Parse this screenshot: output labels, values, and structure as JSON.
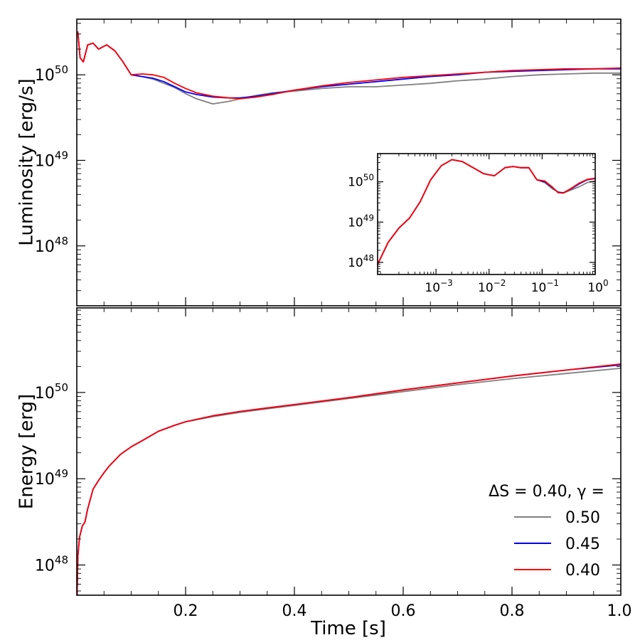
{
  "chart_data": [
    {
      "id": "luminosity",
      "type": "line",
      "ylabel": "Luminosity [erg/s]",
      "xlabel": "",
      "xlim": [
        0,
        1.0
      ],
      "ylim_log10": [
        47.3,
        50.65
      ],
      "yscale": "log",
      "yticks": [
        {
          "log": 48,
          "base": "10",
          "exp": "48"
        },
        {
          "log": 49,
          "base": "10",
          "exp": "49"
        },
        {
          "log": 50,
          "base": "10",
          "exp": "50"
        }
      ],
      "series": [
        {
          "name": "0.50",
          "color": "#808080",
          "x": [
            0.002,
            0.006,
            0.012,
            0.02,
            0.03,
            0.04,
            0.055,
            0.07,
            0.085,
            0.1,
            0.12,
            0.14,
            0.16,
            0.18,
            0.2,
            0.22,
            0.25,
            0.28,
            0.3,
            0.33,
            0.36,
            0.4,
            0.45,
            0.5,
            0.55,
            0.6,
            0.65,
            0.7,
            0.75,
            0.8,
            0.85,
            0.9,
            0.95,
            1.0
          ],
          "y": [
            50.5,
            50.2,
            50.15,
            50.35,
            50.37,
            50.3,
            50.35,
            50.28,
            50.15,
            50.0,
            49.98,
            49.95,
            49.9,
            49.85,
            49.78,
            49.72,
            49.66,
            49.69,
            49.72,
            49.76,
            49.79,
            49.81,
            49.84,
            49.86,
            49.86,
            49.88,
            49.9,
            49.93,
            49.95,
            49.98,
            50.0,
            50.01,
            50.02,
            50.02
          ]
        },
        {
          "name": "0.45",
          "color": "#0000ff",
          "x": [
            0.002,
            0.006,
            0.012,
            0.02,
            0.03,
            0.04,
            0.055,
            0.07,
            0.085,
            0.1,
            0.12,
            0.14,
            0.16,
            0.18,
            0.2,
            0.22,
            0.25,
            0.28,
            0.3,
            0.33,
            0.36,
            0.4,
            0.45,
            0.5,
            0.55,
            0.6,
            0.65,
            0.7,
            0.75,
            0.8,
            0.85,
            0.9,
            0.95,
            1.0
          ],
          "y": [
            50.5,
            50.2,
            50.15,
            50.35,
            50.37,
            50.3,
            50.35,
            50.28,
            50.15,
            50.0,
            49.98,
            49.96,
            49.92,
            49.86,
            49.8,
            49.77,
            49.74,
            49.73,
            49.73,
            49.75,
            49.78,
            49.82,
            49.86,
            49.89,
            49.92,
            49.95,
            49.98,
            50.0,
            50.03,
            50.04,
            50.05,
            50.06,
            50.07,
            50.07
          ]
        },
        {
          "name": "0.40",
          "color": "#ff0000",
          "x": [
            0.002,
            0.006,
            0.012,
            0.02,
            0.03,
            0.04,
            0.055,
            0.07,
            0.085,
            0.1,
            0.12,
            0.14,
            0.16,
            0.18,
            0.2,
            0.22,
            0.25,
            0.28,
            0.3,
            0.33,
            0.36,
            0.4,
            0.45,
            0.5,
            0.55,
            0.6,
            0.65,
            0.7,
            0.75,
            0.8,
            0.85,
            0.9,
            0.95,
            1.0
          ],
          "y": [
            50.5,
            50.2,
            50.15,
            50.35,
            50.37,
            50.3,
            50.35,
            50.28,
            50.15,
            50.0,
            50.01,
            50.0,
            49.97,
            49.9,
            49.84,
            49.79,
            49.75,
            49.73,
            49.72,
            49.74,
            49.77,
            49.82,
            49.87,
            49.91,
            49.94,
            49.97,
            49.99,
            50.01,
            50.03,
            50.05,
            50.06,
            50.07,
            50.07,
            50.08
          ]
        }
      ],
      "inset": {
        "xscale": "log",
        "yscale": "log",
        "xlim_log10": [
          -4.1,
          0.0
        ],
        "ylim_log10": [
          47.7,
          50.7
        ],
        "xticks": [
          {
            "log": -3,
            "base": "10",
            "exp": "−3"
          },
          {
            "log": -2,
            "base": "10",
            "exp": "−2"
          },
          {
            "log": -1,
            "base": "10",
            "exp": "−1"
          },
          {
            "log": 0,
            "base": "10",
            "exp": "0"
          }
        ],
        "yticks": [
          {
            "log": 48,
            "base": "10",
            "exp": "48"
          },
          {
            "log": 49,
            "base": "10",
            "exp": "49"
          },
          {
            "log": 50,
            "base": "10",
            "exp": "50"
          }
        ],
        "series": [
          {
            "name": "0.50",
            "color": "#808080",
            "x": [
              -4.1,
              -3.9,
              -3.7,
              -3.5,
              -3.3,
              -3.1,
              -2.9,
              -2.7,
              -2.5,
              -2.3,
              -2.1,
              -1.9,
              -1.7,
              -1.55,
              -1.4,
              -1.25,
              -1.1,
              -0.95,
              -0.8,
              -0.7,
              -0.6,
              -0.45,
              -0.3,
              -0.15,
              0.0
            ],
            "y": [
              47.95,
              48.5,
              48.85,
              49.1,
              49.5,
              50.05,
              50.4,
              50.55,
              50.5,
              50.35,
              50.2,
              50.15,
              50.35,
              50.38,
              50.35,
              50.35,
              50.05,
              49.98,
              49.82,
              49.75,
              49.72,
              49.8,
              49.88,
              49.98,
              50.02
            ]
          },
          {
            "name": "0.45",
            "color": "#0000ff",
            "x": [
              -4.1,
              -3.9,
              -3.7,
              -3.5,
              -3.3,
              -3.1,
              -2.9,
              -2.7,
              -2.5,
              -2.3,
              -2.1,
              -1.9,
              -1.7,
              -1.55,
              -1.4,
              -1.25,
              -1.1,
              -0.95,
              -0.8,
              -0.7,
              -0.6,
              -0.45,
              -0.3,
              -0.15,
              0.0
            ],
            "y": [
              47.95,
              48.5,
              48.85,
              49.1,
              49.5,
              50.05,
              50.4,
              50.55,
              50.5,
              50.35,
              50.2,
              50.15,
              50.35,
              50.38,
              50.35,
              50.35,
              50.05,
              50.0,
              49.85,
              49.74,
              49.73,
              49.83,
              49.95,
              50.05,
              50.08
            ]
          },
          {
            "name": "0.40",
            "color": "#ff0000",
            "x": [
              -4.1,
              -3.9,
              -3.7,
              -3.5,
              -3.3,
              -3.1,
              -2.9,
              -2.7,
              -2.5,
              -2.3,
              -2.1,
              -1.9,
              -1.7,
              -1.55,
              -1.4,
              -1.25,
              -1.1,
              -0.95,
              -0.8,
              -0.7,
              -0.6,
              -0.45,
              -0.3,
              -0.15,
              0.0
            ],
            "y": [
              47.95,
              48.5,
              48.85,
              49.1,
              49.5,
              50.05,
              50.4,
              50.55,
              50.5,
              50.35,
              50.2,
              50.15,
              50.35,
              50.38,
              50.35,
              50.35,
              50.05,
              50.02,
              49.86,
              49.73,
              49.72,
              49.84,
              49.97,
              50.06,
              50.09
            ]
          }
        ]
      }
    },
    {
      "id": "energy",
      "type": "line",
      "ylabel": "Energy [erg]",
      "xlabel": "Time [s]",
      "xlim": [
        0,
        1.0
      ],
      "ylim_log10": [
        47.65,
        50.98
      ],
      "yscale": "log",
      "xticks": [
        {
          "val": 0.2,
          "label": "0.2"
        },
        {
          "val": 0.4,
          "label": "0.4"
        },
        {
          "val": 0.6,
          "label": "0.6"
        },
        {
          "val": 0.8,
          "label": "0.8"
        },
        {
          "val": 1.0,
          "label": "1.0"
        }
      ],
      "yticks": [
        {
          "log": 48,
          "base": "10",
          "exp": "48"
        },
        {
          "log": 49,
          "base": "10",
          "exp": "49"
        },
        {
          "log": 50,
          "base": "10",
          "exp": "50"
        }
      ],
      "series": [
        {
          "name": "0.50",
          "color": "#808080",
          "x": [
            0.0005,
            0.002,
            0.005,
            0.01,
            0.015,
            0.02,
            0.03,
            0.04,
            0.05,
            0.06,
            0.08,
            0.1,
            0.12,
            0.15,
            0.18,
            0.2,
            0.25,
            0.3,
            0.35,
            0.4,
            0.5,
            0.6,
            0.7,
            0.8,
            0.9,
            1.0
          ],
          "y": [
            47.65,
            48.1,
            48.32,
            48.45,
            48.5,
            48.65,
            48.88,
            48.98,
            49.07,
            49.15,
            49.28,
            49.37,
            49.44,
            49.55,
            49.62,
            49.66,
            49.72,
            49.77,
            49.81,
            49.85,
            49.93,
            50.01,
            50.09,
            50.16,
            50.22,
            50.28
          ]
        },
        {
          "name": "0.45",
          "color": "#0000ff",
          "x": [
            0.0005,
            0.002,
            0.005,
            0.01,
            0.015,
            0.02,
            0.03,
            0.04,
            0.05,
            0.06,
            0.08,
            0.1,
            0.12,
            0.15,
            0.18,
            0.2,
            0.25,
            0.3,
            0.35,
            0.4,
            0.5,
            0.6,
            0.7,
            0.8,
            0.9,
            1.0
          ],
          "y": [
            47.65,
            48.1,
            48.32,
            48.45,
            48.5,
            48.65,
            48.88,
            48.98,
            49.07,
            49.15,
            49.28,
            49.37,
            49.44,
            49.55,
            49.62,
            49.66,
            49.73,
            49.78,
            49.82,
            49.86,
            49.94,
            50.03,
            50.11,
            50.19,
            50.26,
            50.32
          ]
        },
        {
          "name": "0.40",
          "color": "#ff0000",
          "x": [
            0.0005,
            0.002,
            0.005,
            0.01,
            0.015,
            0.02,
            0.03,
            0.04,
            0.05,
            0.06,
            0.08,
            0.1,
            0.12,
            0.15,
            0.18,
            0.2,
            0.25,
            0.3,
            0.35,
            0.4,
            0.5,
            0.6,
            0.7,
            0.8,
            0.9,
            1.0
          ],
          "y": [
            47.65,
            48.1,
            48.32,
            48.45,
            48.5,
            48.65,
            48.88,
            48.98,
            49.07,
            49.15,
            49.28,
            49.37,
            49.44,
            49.55,
            49.62,
            49.66,
            49.73,
            49.78,
            49.82,
            49.86,
            49.94,
            50.03,
            50.11,
            50.19,
            50.26,
            50.33
          ]
        }
      ],
      "legend": {
        "title": "ΔS = 0.40, γ =",
        "placement": "lower-right",
        "entries": [
          {
            "label": "0.50",
            "color": "#808080"
          },
          {
            "label": "0.45",
            "color": "#0000ff"
          },
          {
            "label": "0.40",
            "color": "#ff0000"
          }
        ]
      }
    }
  ]
}
